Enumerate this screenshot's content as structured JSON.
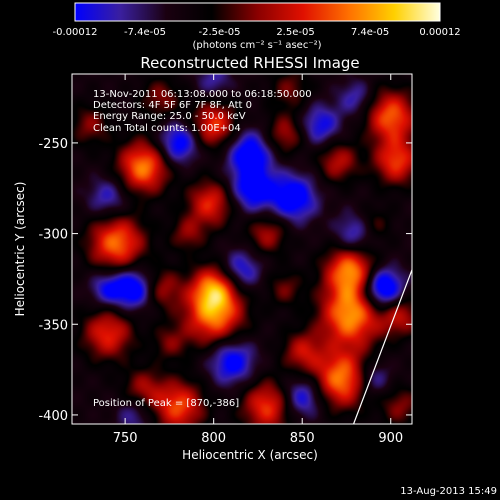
{
  "chart_data": {
    "type": "heatmap",
    "title": "Reconstructed RHESSI Image",
    "xlabel": "Heliocentric X (arcsec)",
    "ylabel": "Heliocentric Y (arcsec)",
    "xlim": [
      720,
      912
    ],
    "ylim": [
      -405,
      -212
    ],
    "x_ticks": [
      750,
      800,
      850,
      900
    ],
    "y_ticks": [
      -250,
      -300,
      -350,
      -400
    ],
    "annotations": [
      "13-Nov-2011 06:13:08.000 to 06:18:50.000",
      "Detectors: 4F 5F 6F 7F 8F, Att 0",
      "Energy Range: 25.0 - 50.0 keV",
      "Clean     Total counts: 1.00E+04"
    ],
    "peak_label": "Position of Peak = [870,-386]",
    "peak_position": [
      870,
      -386
    ],
    "colorbar": {
      "min": -0.00012,
      "max": 0.00012,
      "tick_labels": [
        "-0.00012",
        "-7.4e-05",
        "-2.5e-05",
        "2.5e-05",
        "7.4e-05",
        "0.00012"
      ],
      "tick_values": [
        -0.00012,
        -7.4e-05,
        -2.5e-05,
        2.5e-05,
        7.4e-05,
        0.00012
      ],
      "unit_label": "(photons cm⁻² s⁻¹ asec⁻²)",
      "colors": [
        "#0000ff",
        "#3a1f9e",
        "#1a0010",
        "#000000",
        "#8a0000",
        "#e01000",
        "#ff7000",
        "#ffd000",
        "#ffffe0"
      ]
    },
    "sources": [
      {
        "x": 877,
        "y": -345,
        "amp": 1.0,
        "r": 12
      },
      {
        "x": 877,
        "y": -320,
        "amp": 0.95,
        "r": 10
      },
      {
        "x": 872,
        "y": -380,
        "amp": 0.95,
        "r": 11
      },
      {
        "x": 800,
        "y": -345,
        "amp": 0.9,
        "r": 12
      },
      {
        "x": 800,
        "y": -330,
        "amp": 0.8,
        "r": 9
      },
      {
        "x": 760,
        "y": -263,
        "amp": 0.95,
        "r": 10
      },
      {
        "x": 745,
        "y": -305,
        "amp": 0.9,
        "r": 11
      },
      {
        "x": 740,
        "y": -355,
        "amp": 0.7,
        "r": 10
      },
      {
        "x": 800,
        "y": -240,
        "amp": 0.75,
        "r": 9
      },
      {
        "x": 798,
        "y": -283,
        "amp": 0.7,
        "r": 9
      },
      {
        "x": 900,
        "y": -235,
        "amp": 0.85,
        "r": 10
      },
      {
        "x": 903,
        "y": -260,
        "amp": 0.75,
        "r": 9
      },
      {
        "x": 870,
        "y": -260,
        "amp": 0.55,
        "r": 8
      },
      {
        "x": 840,
        "y": -245,
        "amp": 0.5,
        "r": 8
      },
      {
        "x": 830,
        "y": -300,
        "amp": 0.5,
        "r": 8
      },
      {
        "x": 780,
        "y": -395,
        "amp": 0.8,
        "r": 10
      },
      {
        "x": 830,
        "y": -395,
        "amp": 0.75,
        "r": 10
      },
      {
        "x": 850,
        "y": -365,
        "amp": 0.55,
        "r": 8
      },
      {
        "x": 905,
        "y": -345,
        "amp": 0.55,
        "r": 8
      },
      {
        "x": 770,
        "y": -330,
        "amp": 0.5,
        "r": 8
      },
      {
        "x": 905,
        "y": -395,
        "amp": 0.4,
        "r": 8
      },
      {
        "x": 760,
        "y": -385,
        "amp": 0.45,
        "r": 8
      },
      {
        "x": 843,
        "y": -220,
        "amp": 0.35,
        "r": 8
      },
      {
        "x": 770,
        "y": -225,
        "amp": 0.4,
        "r": 8
      },
      {
        "x": 840,
        "y": -330,
        "amp": 0.35,
        "r": 7
      },
      {
        "x": 785,
        "y": -300,
        "amp": 0.4,
        "r": 7
      },
      {
        "x": 775,
        "y": -360,
        "amp": 0.35,
        "r": 7
      },
      {
        "x": 890,
        "y": -295,
        "amp": 0.35,
        "r": 7
      },
      {
        "x": 730,
        "y": -240,
        "amp": 0.4,
        "r": 8
      },
      {
        "x": 820,
        "y": -255,
        "amp": -0.7,
        "r": 9
      },
      {
        "x": 822,
        "y": -275,
        "amp": -0.7,
        "r": 9
      },
      {
        "x": 845,
        "y": -280,
        "amp": -0.75,
        "r": 9
      },
      {
        "x": 895,
        "y": -330,
        "amp": -1.0,
        "r": 8
      },
      {
        "x": 780,
        "y": -250,
        "amp": -0.7,
        "r": 8
      },
      {
        "x": 755,
        "y": -330,
        "amp": -0.8,
        "r": 8
      },
      {
        "x": 810,
        "y": -370,
        "amp": -0.7,
        "r": 9
      },
      {
        "x": 880,
        "y": -300,
        "amp": -0.55,
        "r": 8
      },
      {
        "x": 850,
        "y": -390,
        "amp": -0.6,
        "r": 8
      },
      {
        "x": 740,
        "y": -330,
        "amp": -0.55,
        "r": 7
      },
      {
        "x": 815,
        "y": -320,
        "amp": -0.55,
        "r": 8
      },
      {
        "x": 860,
        "y": -240,
        "amp": -0.55,
        "r": 8
      },
      {
        "x": 880,
        "y": -225,
        "amp": -0.4,
        "r": 7
      },
      {
        "x": 740,
        "y": -280,
        "amp": -0.45,
        "r": 8
      },
      {
        "x": 890,
        "y": -380,
        "amp": -0.45,
        "r": 7
      },
      {
        "x": 755,
        "y": -400,
        "amp": -0.35,
        "r": 7
      },
      {
        "x": 800,
        "y": -215,
        "amp": -0.35,
        "r": 7
      }
    ],
    "limb_line": {
      "x": [
        879,
        912
      ],
      "y": [
        -405,
        -320
      ]
    }
  },
  "footer": {
    "timestamp": "13-Aug-2013 15:49"
  }
}
